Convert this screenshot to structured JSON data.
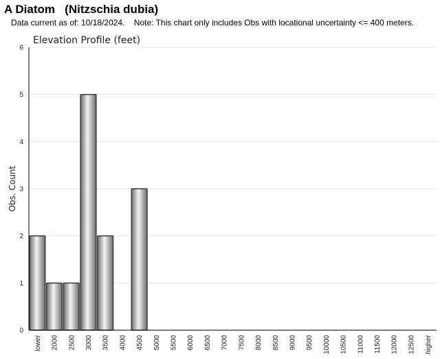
{
  "header": {
    "title": "A Diatom   (Nitzschia dubia)",
    "note": "Data current as of: 10/18/2024.    Note: This chart only includes Obs with locational uncertainty <= 400 meters."
  },
  "chart_data": {
    "type": "bar",
    "title": "Elevation Profile (feet)",
    "xlabel": "",
    "ylabel": "Obs. Count",
    "ylim": [
      0,
      6
    ],
    "yticks": [
      "0",
      "1",
      "2",
      "3",
      "4",
      "5",
      "6"
    ],
    "grid": true,
    "categories": [
      "lower",
      "2000",
      "2500",
      "3000",
      "3500",
      "4000",
      "4500",
      "5000",
      "5500",
      "6000",
      "6500",
      "7000",
      "7500",
      "8000",
      "8500",
      "9000",
      "9500",
      "10000",
      "10500",
      "11000",
      "11500",
      "12000",
      "12500",
      "higher"
    ],
    "values": [
      2,
      1,
      1,
      5,
      2,
      0,
      3,
      0,
      0,
      0,
      0,
      0,
      0,
      0,
      0,
      0,
      0,
      0,
      0,
      0,
      0,
      0,
      0,
      0
    ],
    "colors": {
      "bar_light": "#f4f4f4",
      "bar_dark": "#6e6e6e",
      "bar_stroke": "#3a3a3a",
      "grid": "#e3e3e3",
      "axis": "#000000"
    }
  }
}
